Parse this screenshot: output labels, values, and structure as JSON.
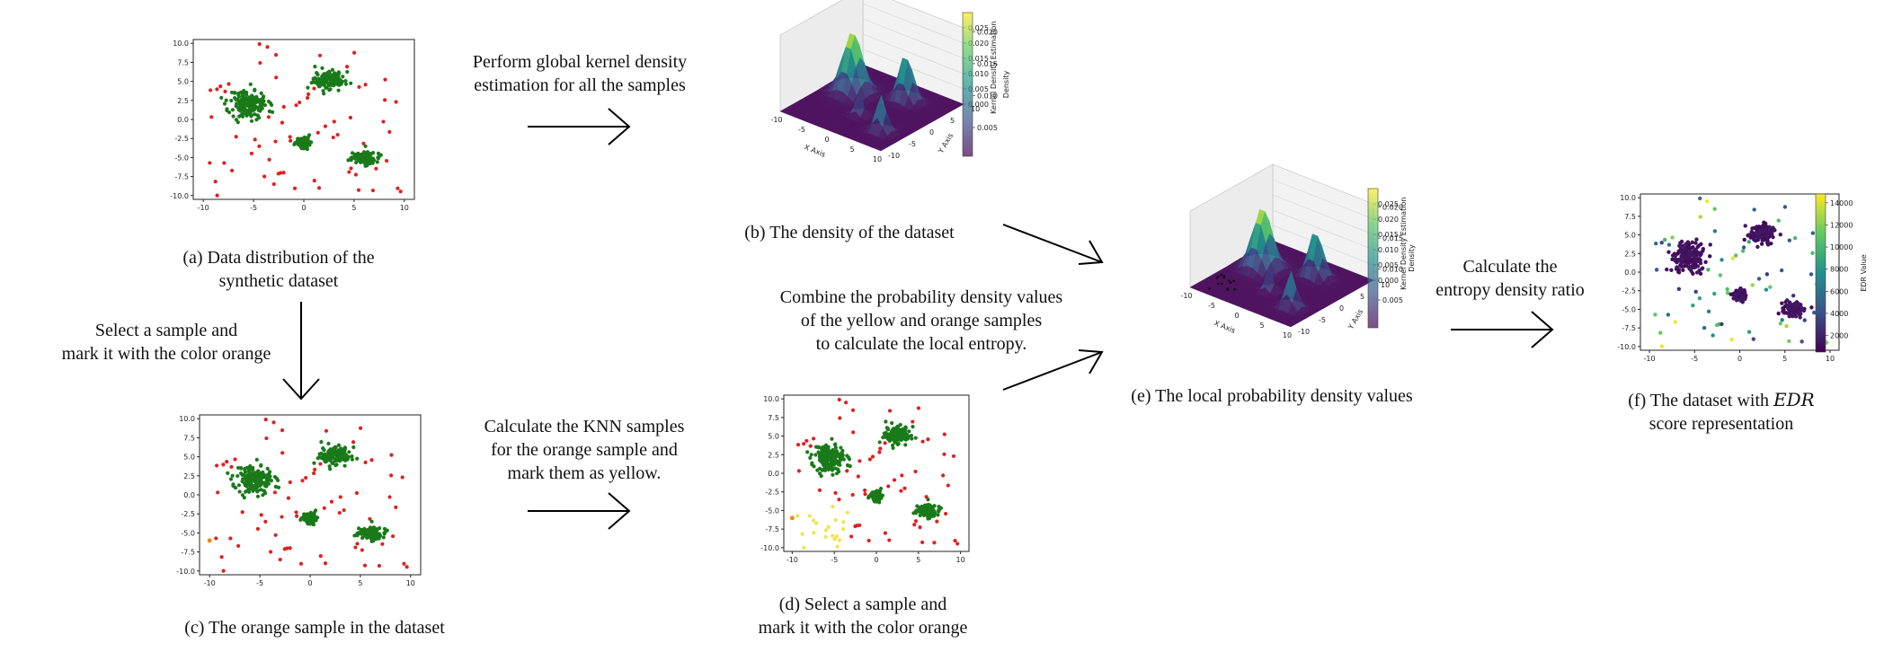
{
  "colors": {
    "cluster": "#1a7a1a",
    "noise": "#e02020",
    "orange": "#f08a10",
    "yellow": "#f2e24a",
    "axis": "#222222",
    "viridis": [
      "#440154",
      "#3b528b",
      "#21918c",
      "#5ec962",
      "#fde725"
    ]
  },
  "panels": {
    "a": {
      "caption_l1": "(a)    Data distribution of the",
      "caption_l2": "synthetic dataset"
    },
    "b": {
      "caption": "(b) The density of the dataset"
    },
    "c": {
      "caption": "(c) The orange sample in the dataset"
    },
    "d": {
      "caption_l1": "(d) Select a sample and",
      "caption_l2": "mark it with the color orange"
    },
    "e": {
      "caption": "(e) The local probability density values"
    },
    "f": {
      "caption_l1": "(f) The dataset with ",
      "caption_italic": "EDR",
      "caption_l2": "score representation"
    }
  },
  "steps": {
    "kde_l1": "Perform global kernel density",
    "kde_l2": "estimation for all the samples",
    "select_l1": "Select a sample and",
    "select_l2": "mark it with the color orange",
    "knn_l1": "Calculate the KNN samples",
    "knn_l2": "for the orange sample and",
    "knn_l3": "mark them as yellow.",
    "combine_l1": "Combine the probability density values",
    "combine_l2": "of the yellow and orange samples",
    "combine_l3": "to calculate the local entropy.",
    "ratio_l1": "Calculate the",
    "ratio_l2": "entropy density ratio"
  },
  "scatter_axes": {
    "xticks": [
      "-10",
      "-5",
      "0",
      "5",
      "10"
    ],
    "yticks": [
      "10.0",
      "7.5",
      "5.0",
      "2.5",
      "0.0",
      "-2.5",
      "-5.0",
      "-7.5",
      "-10.0"
    ]
  },
  "surface_axes": {
    "xlabel": "X Axis",
    "ylabel": "Y Axis",
    "zlabel": "Kernel Density Estimation",
    "xticks": [
      "-10",
      "-5",
      "0",
      "5",
      "10"
    ],
    "yticks": [
      "-10",
      "-5",
      "0",
      "5",
      "10"
    ],
    "zticks": [
      "0.025",
      "0.020",
      "0.015",
      "0.010",
      "0.005",
      "0.000"
    ],
    "cbar_label": "Density",
    "cbar_ticks": [
      "0.020",
      "0.015",
      "0.010",
      "0.005"
    ]
  },
  "edr_colorbar": {
    "label": "EDR Value",
    "ticks": [
      "14000",
      "12000",
      "10000",
      "8000",
      "6000",
      "4000",
      "2000"
    ]
  }
}
